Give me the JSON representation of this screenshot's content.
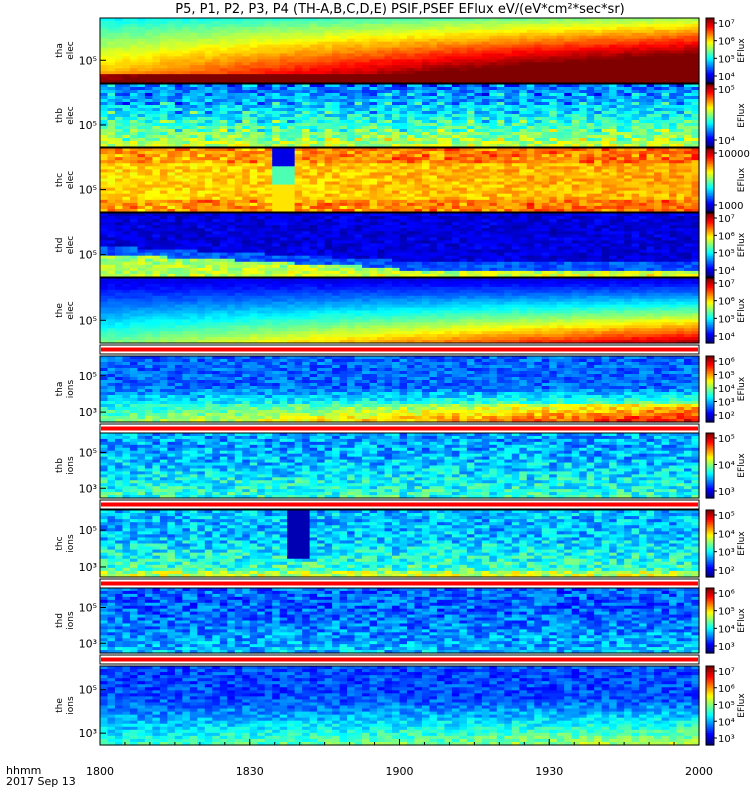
{
  "chart_data": {
    "type": "heatmap",
    "title": "P5, P1, P2, P3, P4 (TH-A,B,C,D,E) PSIF,PSEF EFlux eV/(eV*cm²*sec*sr)",
    "x_ticks": [
      "1800",
      "1830",
      "1900",
      "1930",
      "2000"
    ],
    "x_label_line1": "hhmm",
    "x_label_line2": "2017 Sep 13",
    "colorbar_label": "EFlux",
    "panels": [
      {
        "id": "tha_elec",
        "probe": "tha",
        "species": "elec",
        "y_ticks": [
          "10⁵"
        ],
        "cb_ticks": [
          "10⁷",
          "10⁶",
          "10⁵",
          "10⁴"
        ],
        "clim_log": [
          3.6,
          7.1
        ],
        "separator": false
      },
      {
        "id": "thb_elec",
        "probe": "thb",
        "species": "elec",
        "y_ticks": [
          "10⁵"
        ],
        "cb_ticks": [
          "10⁵",
          "10⁴"
        ],
        "clim_log": [
          3.8,
          5.6
        ],
        "separator": false
      },
      {
        "id": "thc_elec",
        "probe": "thc",
        "species": "elec",
        "y_ticks": [
          "10⁵"
        ],
        "cb_ticks": [
          "10000",
          "1000"
        ],
        "clim_log": [
          2.8,
          4.6
        ],
        "separator": false
      },
      {
        "id": "thd_elec",
        "probe": "thd",
        "species": "elec",
        "y_ticks": [
          "10⁵"
        ],
        "cb_ticks": [
          "10⁷",
          "10⁶",
          "10⁵",
          "10⁴"
        ],
        "clim_log": [
          3.7,
          7.1
        ],
        "separator": false
      },
      {
        "id": "the_elec",
        "probe": "the",
        "species": "elec",
        "y_ticks": [
          "10⁵"
        ],
        "cb_ticks": [
          "10⁷",
          "10⁶",
          "10⁵",
          "10⁴"
        ],
        "clim_log": [
          3.7,
          7.1
        ],
        "separator": true
      },
      {
        "id": "tha_ions",
        "probe": "tha",
        "species": "ions",
        "y_ticks": [
          "10⁵",
          "10³"
        ],
        "cb_ticks": [
          "10⁶",
          "10⁵",
          "10⁴",
          "10³",
          "10²"
        ],
        "clim_log": [
          1.8,
          6.2
        ],
        "separator": true
      },
      {
        "id": "thb_ions",
        "probe": "thb",
        "species": "ions",
        "y_ticks": [
          "10⁵",
          "10³"
        ],
        "cb_ticks": [
          "10⁵",
          "10⁴",
          "10³"
        ],
        "clim_log": [
          2.5,
          5.8
        ],
        "separator": true
      },
      {
        "id": "thc_ions",
        "probe": "thc",
        "species": "ions",
        "y_ticks": [
          "10⁵",
          "10³"
        ],
        "cb_ticks": [
          "10⁵",
          "10⁴",
          "10³",
          "10²"
        ],
        "clim_log": [
          1.8,
          5.3
        ],
        "separator": true
      },
      {
        "id": "thd_ions",
        "probe": "thd",
        "species": "ions",
        "y_ticks": [
          "10⁵",
          "10³"
        ],
        "cb_ticks": [
          "10⁶",
          "10⁵",
          "10⁴",
          "10³"
        ],
        "clim_log": [
          2.5,
          6.2
        ],
        "separator": true
      },
      {
        "id": "the_ions",
        "probe": "the",
        "species": "ions",
        "y_ticks": [
          "10⁵",
          "10³"
        ],
        "cb_ticks": [
          "10⁷",
          "10⁶",
          "10⁵",
          "10⁴",
          "10³"
        ],
        "clim_log": [
          2.5,
          7.2
        ],
        "separator": false
      }
    ]
  }
}
